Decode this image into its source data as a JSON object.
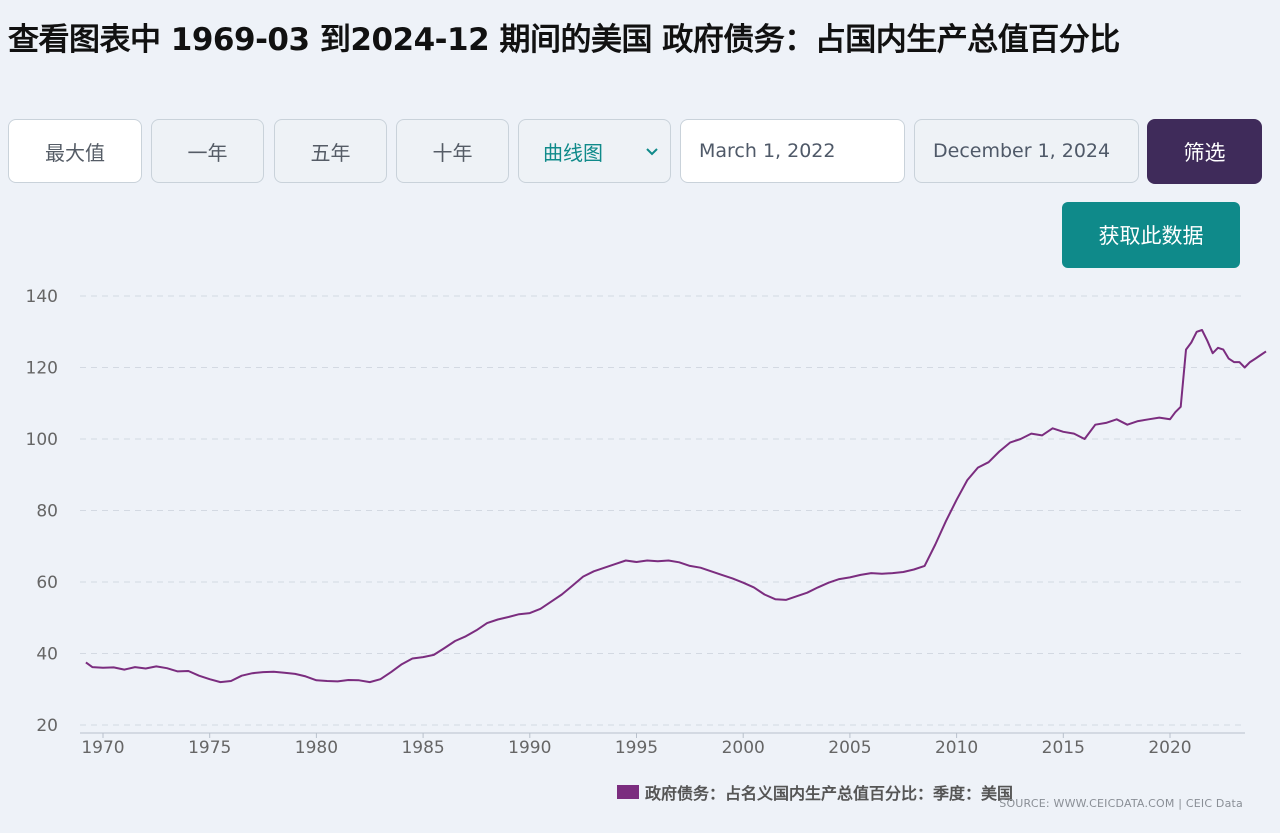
{
  "title": "查看图表中 1969-03 到2024-12 期间的美国 政府债务：占国内生产总值百分比",
  "controls": {
    "ranges": [
      "最大值",
      "一年",
      "五年",
      "十年"
    ],
    "chart_type": "曲线图",
    "start_date": "March 1, 2022",
    "end_date": "December 1, 2024",
    "filter_label": "筛选",
    "get_data_label": "获取此数据"
  },
  "colors": {
    "series": "#7b2d7f",
    "filter_button": "#3f2b5a",
    "teal": "#0f8a8a"
  },
  "source": "SOURCE: WWW.CEICDATA.COM | CEIC Data",
  "chart_data": {
    "type": "line",
    "ylim": [
      20,
      140
    ],
    "yticks": [
      20,
      40,
      60,
      80,
      100,
      120,
      140
    ],
    "xlim": [
      1969.2,
      2024.9
    ],
    "xticks": [
      1970,
      1975,
      1980,
      1985,
      1990,
      1995,
      2000,
      2005,
      2010,
      2015,
      2020
    ],
    "grid": true,
    "legend_position": "bottom-right",
    "series": [
      {
        "name": "政府债务：占名义国内生产总值百分比：季度：美国",
        "points": [
          [
            1969.2,
            37.5
          ],
          [
            1969.5,
            36.2
          ],
          [
            1970.0,
            36.0
          ],
          [
            1970.5,
            36.1
          ],
          [
            1971.0,
            35.5
          ],
          [
            1971.5,
            36.2
          ],
          [
            1972.0,
            35.8
          ],
          [
            1972.5,
            36.4
          ],
          [
            1973.0,
            35.9
          ],
          [
            1973.5,
            35.0
          ],
          [
            1974.0,
            35.1
          ],
          [
            1974.5,
            33.8
          ],
          [
            1975.0,
            32.8
          ],
          [
            1975.5,
            32.0
          ],
          [
            1976.0,
            32.3
          ],
          [
            1976.5,
            33.8
          ],
          [
            1977.0,
            34.5
          ],
          [
            1977.5,
            34.8
          ],
          [
            1978.0,
            34.9
          ],
          [
            1978.5,
            34.6
          ],
          [
            1979.0,
            34.3
          ],
          [
            1979.5,
            33.6
          ],
          [
            1980.0,
            32.5
          ],
          [
            1980.5,
            32.3
          ],
          [
            1981.0,
            32.2
          ],
          [
            1981.5,
            32.6
          ],
          [
            1982.0,
            32.5
          ],
          [
            1982.5,
            32.0
          ],
          [
            1983.0,
            32.8
          ],
          [
            1983.5,
            34.8
          ],
          [
            1984.0,
            37.0
          ],
          [
            1984.5,
            38.6
          ],
          [
            1985.0,
            39.0
          ],
          [
            1985.5,
            39.6
          ],
          [
            1986.0,
            41.5
          ],
          [
            1986.5,
            43.5
          ],
          [
            1987.0,
            44.8
          ],
          [
            1987.5,
            46.5
          ],
          [
            1988.0,
            48.5
          ],
          [
            1988.5,
            49.5
          ],
          [
            1989.0,
            50.2
          ],
          [
            1989.5,
            51.0
          ],
          [
            1990.0,
            51.3
          ],
          [
            1990.5,
            52.5
          ],
          [
            1991.0,
            54.5
          ],
          [
            1991.5,
            56.5
          ],
          [
            1992.0,
            59.0
          ],
          [
            1992.5,
            61.5
          ],
          [
            1993.0,
            63.0
          ],
          [
            1993.5,
            64.0
          ],
          [
            1994.0,
            65.0
          ],
          [
            1994.5,
            66.0
          ],
          [
            1995.0,
            65.6
          ],
          [
            1995.5,
            66.0
          ],
          [
            1996.0,
            65.8
          ],
          [
            1996.5,
            66.0
          ],
          [
            1997.0,
            65.5
          ],
          [
            1997.5,
            64.5
          ],
          [
            1998.0,
            64.0
          ],
          [
            1998.5,
            63.0
          ],
          [
            1999.0,
            62.0
          ],
          [
            1999.5,
            61.0
          ],
          [
            2000.0,
            59.8
          ],
          [
            2000.5,
            58.5
          ],
          [
            2001.0,
            56.5
          ],
          [
            2001.5,
            55.2
          ],
          [
            2002.0,
            55.0
          ],
          [
            2002.5,
            56.0
          ],
          [
            2003.0,
            57.0
          ],
          [
            2003.5,
            58.5
          ],
          [
            2004.0,
            59.8
          ],
          [
            2004.5,
            60.8
          ],
          [
            2005.0,
            61.3
          ],
          [
            2005.5,
            62.0
          ],
          [
            2006.0,
            62.5
          ],
          [
            2006.5,
            62.3
          ],
          [
            2007.0,
            62.5
          ],
          [
            2007.5,
            62.8
          ],
          [
            2008.0,
            63.5
          ],
          [
            2008.5,
            64.5
          ],
          [
            2009.0,
            70.5
          ],
          [
            2009.5,
            77.0
          ],
          [
            2010.0,
            83.0
          ],
          [
            2010.5,
            88.5
          ],
          [
            2011.0,
            92.0
          ],
          [
            2011.5,
            93.5
          ],
          [
            2012.0,
            96.5
          ],
          [
            2012.5,
            99.0
          ],
          [
            2013.0,
            100.0
          ],
          [
            2013.5,
            101.5
          ],
          [
            2014.0,
            101.0
          ],
          [
            2014.5,
            103.0
          ],
          [
            2015.0,
            102.0
          ],
          [
            2015.5,
            101.5
          ],
          [
            2016.0,
            100.0
          ],
          [
            2016.5,
            104.0
          ],
          [
            2017.0,
            104.5
          ],
          [
            2017.5,
            105.5
          ],
          [
            2018.0,
            104.0
          ],
          [
            2018.5,
            105.0
          ],
          [
            2019.0,
            105.5
          ],
          [
            2019.5,
            106.0
          ],
          [
            2020.0,
            105.5
          ],
          [
            2020.25,
            107.5
          ],
          [
            2020.5,
            109.0
          ],
          [
            2020.75,
            125.0
          ],
          [
            2021.0,
            127.0
          ],
          [
            2021.25,
            130.0
          ],
          [
            2021.5,
            130.5
          ],
          [
            2021.75,
            127.5
          ],
          [
            2022.0,
            124.0
          ],
          [
            2022.25,
            125.5
          ],
          [
            2022.5,
            125.0
          ],
          [
            2022.75,
            122.5
          ],
          [
            2023.0,
            121.5
          ],
          [
            2023.25,
            121.5
          ],
          [
            2023.5,
            120.0
          ],
          [
            2023.75,
            121.5
          ],
          [
            2024.0,
            122.5
          ],
          [
            2024.25,
            123.5
          ],
          [
            2024.5,
            124.5
          ]
        ]
      }
    ]
  }
}
